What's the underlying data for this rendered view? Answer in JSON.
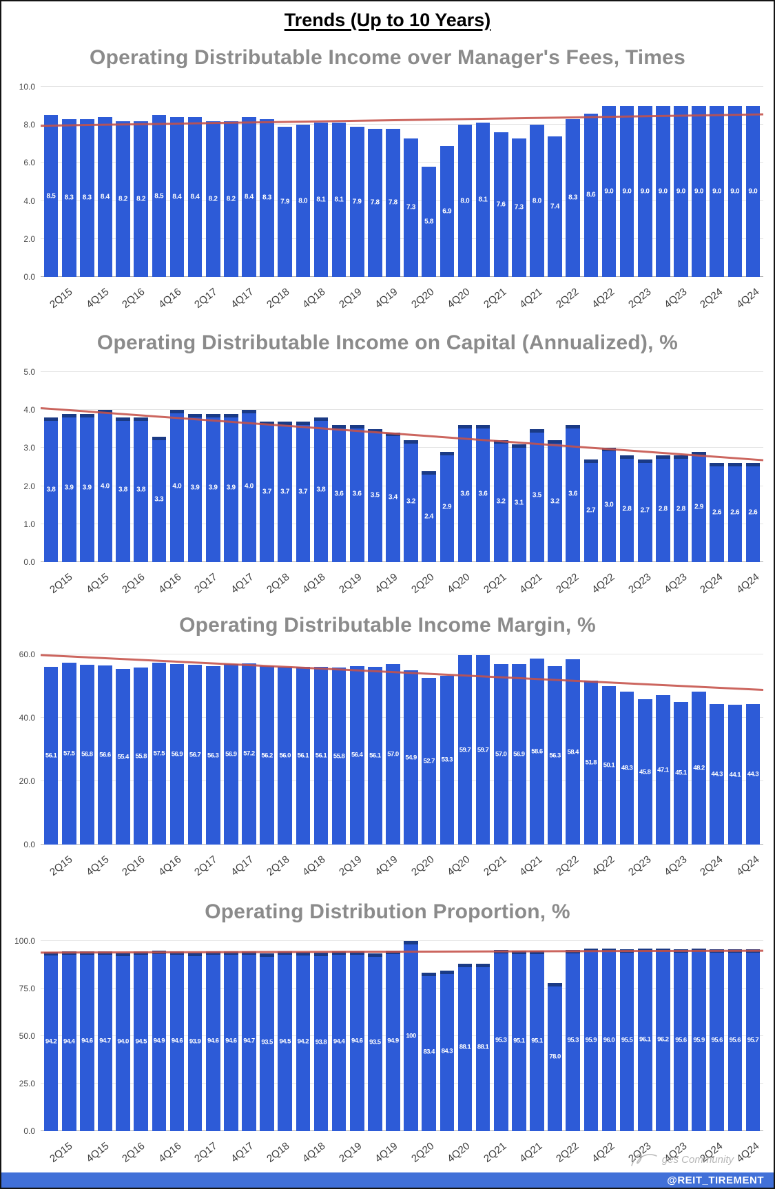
{
  "page": {
    "title": "Trends (Up to 10 Years)"
  },
  "footer": {
    "handle": "@REIT_TIREMENT",
    "watermark": "ges Community"
  },
  "colors": {
    "bar": "#2d5bd7",
    "bar_cap": "#1a3a85",
    "trend": "#c5524a",
    "gridline": "#e4e4e4",
    "baseline": "#adadad",
    "chart_title": "#8b8b8b",
    "footer_strip": "#4170d8"
  },
  "chart_data": [
    {
      "type": "bar",
      "title": "Operating Distributable Income over Manager's Fees, Times",
      "x_tick_labels": [
        "2Q15",
        "4Q15",
        "2Q16",
        "4Q16",
        "2Q17",
        "4Q17",
        "2Q18",
        "4Q18",
        "2Q19",
        "4Q19",
        "2Q20",
        "4Q20",
        "2Q21",
        "4Q21",
        "2Q22",
        "4Q22",
        "2Q23",
        "4Q23",
        "2Q24",
        "4Q24"
      ],
      "label_every_n_bars": 2,
      "values": [
        8.5,
        8.3,
        8.3,
        8.4,
        8.2,
        8.2,
        8.5,
        8.4,
        8.4,
        8.2,
        8.2,
        8.4,
        8.3,
        7.9,
        8.0,
        8.1,
        8.1,
        7.9,
        7.8,
        7.8,
        7.3,
        5.8,
        6.9,
        8.0,
        8.1,
        7.6,
        7.3,
        8.0,
        7.4,
        8.3,
        8.6,
        9.0,
        9.0,
        9.0,
        9.0,
        9.0,
        9.0,
        9.0,
        9.0,
        9.0
      ],
      "ylim": [
        0,
        10
      ],
      "yticks": [
        0,
        2,
        4,
        6,
        8,
        10
      ],
      "grid": true,
      "dark_cap": false,
      "trendline": {
        "start": 7.95,
        "end": 8.55
      }
    },
    {
      "type": "bar",
      "title": "Operating Distributable Income on Capital (Annualized), %",
      "x_tick_labels": [
        "2Q15",
        "4Q15",
        "2Q16",
        "4Q16",
        "2Q17",
        "4Q17",
        "2Q18",
        "4Q18",
        "2Q19",
        "4Q19",
        "2Q20",
        "4Q20",
        "2Q21",
        "4Q21",
        "2Q22",
        "4Q22",
        "2Q23",
        "4Q23",
        "2Q24",
        "4Q24"
      ],
      "label_every_n_bars": 2,
      "values": [
        3.8,
        3.9,
        3.9,
        4.0,
        3.8,
        3.8,
        3.3,
        4.0,
        3.9,
        3.9,
        3.9,
        4.0,
        3.7,
        3.7,
        3.7,
        3.8,
        3.6,
        3.6,
        3.5,
        3.4,
        3.2,
        2.4,
        2.9,
        3.6,
        3.6,
        3.2,
        3.1,
        3.5,
        3.2,
        3.6,
        2.7,
        3.0,
        2.8,
        2.7,
        2.8,
        2.8,
        2.9,
        2.6,
        2.6,
        2.6
      ],
      "ylim": [
        0,
        5
      ],
      "yticks": [
        0,
        1,
        2,
        3,
        4,
        5
      ],
      "grid": true,
      "dark_cap": true,
      "trendline": {
        "start": 4.05,
        "end": 2.68
      }
    },
    {
      "type": "bar",
      "title": "Operating Distributable Income Margin, %",
      "x_tick_labels": [
        "2Q15",
        "4Q15",
        "2Q16",
        "4Q16",
        "2Q17",
        "4Q17",
        "2Q18",
        "4Q18",
        "2Q19",
        "4Q19",
        "2Q20",
        "4Q20",
        "2Q21",
        "4Q21",
        "2Q22",
        "4Q22",
        "2Q23",
        "4Q23",
        "2Q24",
        "4Q24"
      ],
      "label_every_n_bars": 2,
      "values": [
        56.1,
        57.5,
        56.8,
        56.6,
        55.4,
        55.8,
        57.5,
        56.9,
        56.7,
        56.3,
        56.9,
        57.2,
        56.2,
        56.0,
        56.1,
        56.1,
        55.8,
        56.4,
        56.1,
        57.0,
        54.9,
        52.7,
        53.3,
        59.7,
        59.7,
        57.0,
        56.9,
        58.6,
        56.3,
        58.4,
        51.8,
        50.1,
        48.3,
        45.8,
        47.1,
        45.1,
        48.2,
        44.3,
        44.1,
        44.3
      ],
      "ylim": [
        0,
        60
      ],
      "yticks": [
        0,
        20,
        40,
        60
      ],
      "grid": true,
      "dark_cap": false,
      "trendline": {
        "start": 59.8,
        "end": 48.8
      }
    },
    {
      "type": "bar",
      "title": "Operating Distribution Proportion, %",
      "x_tick_labels": [
        "2Q15",
        "4Q15",
        "2Q16",
        "4Q16",
        "2Q17",
        "4Q17",
        "2Q18",
        "4Q18",
        "2Q19",
        "4Q19",
        "2Q20",
        "4Q20",
        "2Q21",
        "4Q21",
        "2Q22",
        "4Q22",
        "2Q23",
        "4Q23",
        "2Q24",
        "4Q24"
      ],
      "label_every_n_bars": 2,
      "values": [
        94.2,
        94.4,
        94.6,
        94.7,
        94.0,
        94.5,
        94.9,
        94.6,
        93.9,
        94.6,
        94.6,
        94.7,
        93.5,
        94.5,
        94.2,
        93.8,
        94.4,
        94.6,
        93.5,
        94.9,
        100,
        83.4,
        84.3,
        88.1,
        88.1,
        95.3,
        95.1,
        95.1,
        78.0,
        95.3,
        95.9,
        96.0,
        95.5,
        96.1,
        96.2,
        95.6,
        95.9,
        95.6,
        95.6,
        95.7
      ],
      "ylim": [
        0,
        100
      ],
      "yticks": [
        0,
        25,
        50,
        75,
        100
      ],
      "grid": true,
      "dark_cap": true,
      "trendline": {
        "start": 93.9,
        "end": 94.9
      }
    }
  ]
}
